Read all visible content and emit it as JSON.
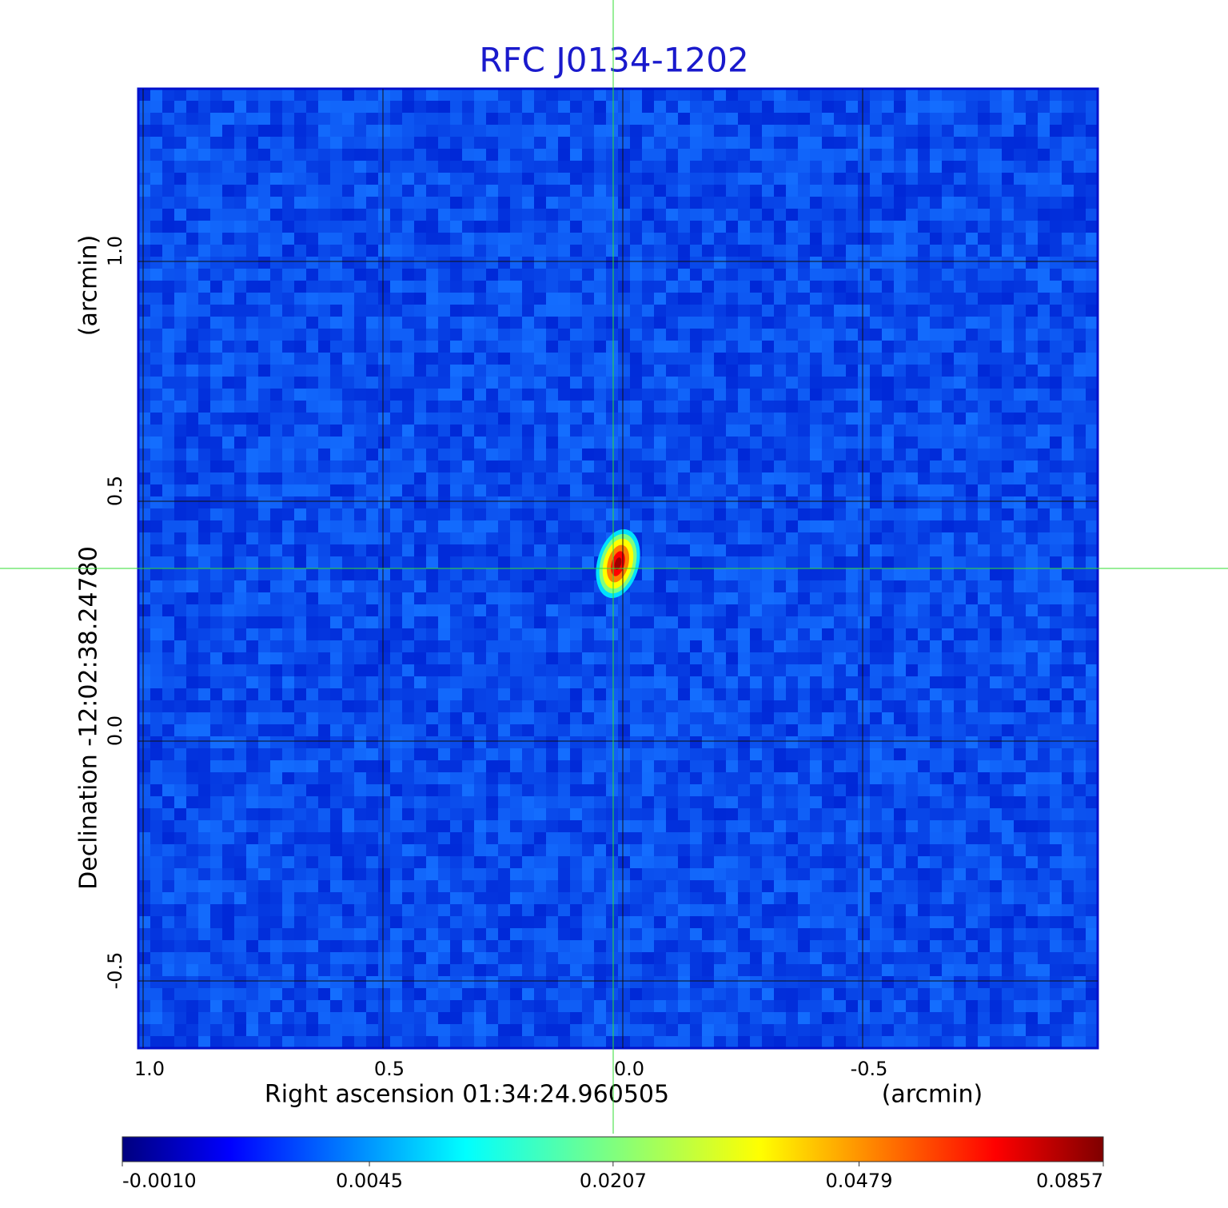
{
  "chart_data": {
    "type": "image",
    "title": "RFC J0134-1202",
    "x_label": "Right ascension  01:34:24.960505",
    "x_unit": "(arcmin)",
    "y_label": "Declination  -12:02:38.24780",
    "y_unit": "(arcmin)",
    "xlim": [
      1.01,
      -0.99
    ],
    "ylim": [
      -0.64,
      1.36
    ],
    "xticks": [
      {
        "value": 1,
        "label": "1.0"
      },
      0.5,
      {
        "value": 0,
        "label": "0.0"
      },
      -0.5
    ],
    "yticks": [
      {
        "value": 1,
        "label": "1.0"
      },
      0.5,
      {
        "value": 0,
        "label": "0.0"
      },
      -0.5
    ],
    "grid": true,
    "crosshair": {
      "x": 0.02,
      "y": 0.36,
      "color": "#33dd33"
    },
    "source": {
      "x": 0.01,
      "y": 0.37
    },
    "colormap": "jet",
    "colorbar": {
      "scale": "sqrt",
      "lim": [
        -0.001,
        0.0857
      ],
      "ticks": [
        {
          "value": -0.001,
          "label": "-0.0010"
        },
        {
          "value": 0.0045,
          "label": "0.0045"
        },
        {
          "value": 0.0207,
          "label": "0.0207"
        },
        {
          "value": 0.0479,
          "label": "0.0479"
        },
        {
          "value": 0.0857,
          "label": "0.0857"
        }
      ]
    }
  }
}
